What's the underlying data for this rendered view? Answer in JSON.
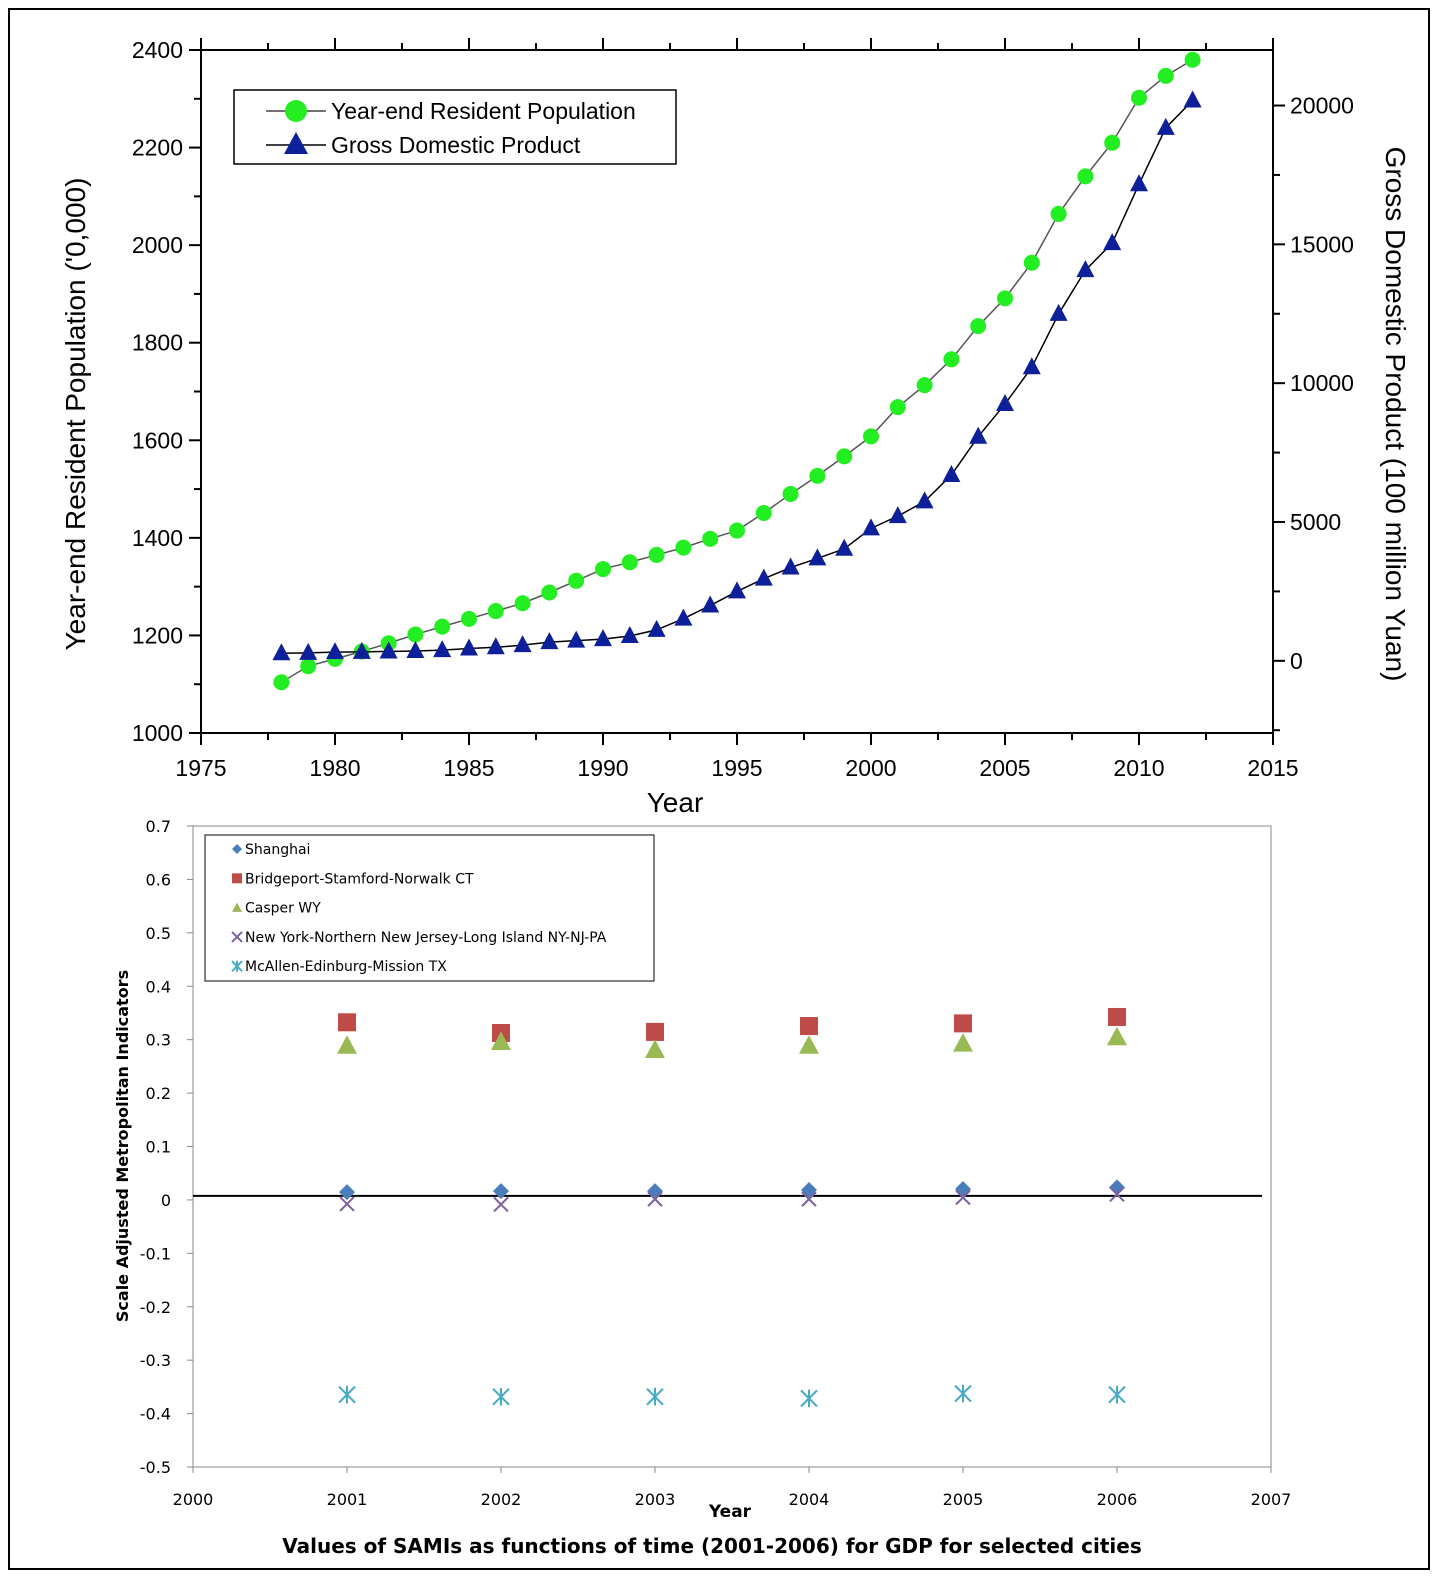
{
  "chart_data": [
    {
      "type": "line",
      "xlabel": "Year",
      "ylabel": "Year-end Resident Population ('0,000)",
      "y2label": "Gross Domestic Product (100 million Yuan)",
      "xlim": [
        1975,
        2015
      ],
      "ylim": [
        1000,
        2400
      ],
      "y2lim": [
        -2600,
        22000
      ],
      "x_ticks": [
        1975,
        1980,
        1985,
        1990,
        1995,
        2000,
        2005,
        2010,
        2015
      ],
      "y_ticks": [
        1000,
        1200,
        1400,
        1600,
        1800,
        2000,
        2200,
        2400
      ],
      "y2_ticks": [
        0,
        5000,
        10000,
        15000,
        20000
      ],
      "grid": false,
      "legend_position": "top-left",
      "x": [
        1978,
        1979,
        1980,
        1981,
        1982,
        1983,
        1984,
        1985,
        1986,
        1987,
        1988,
        1989,
        1990,
        1991,
        1992,
        1993,
        1994,
        1995,
        1996,
        1997,
        1998,
        1999,
        2000,
        2001,
        2002,
        2003,
        2004,
        2005,
        2006,
        2007,
        2008,
        2009,
        2010,
        2011,
        2012
      ],
      "series": [
        {
          "name": "Year-end Resident Population",
          "axis": "left",
          "color": "#22ee22",
          "marker": "circle",
          "values": [
            1104,
            1137,
            1152,
            1167,
            1184,
            1202,
            1218,
            1234,
            1250,
            1266,
            1288,
            1312,
            1336,
            1350,
            1365,
            1380,
            1398,
            1415,
            1451,
            1490,
            1527,
            1567,
            1608,
            1668,
            1713,
            1766,
            1834,
            1891,
            1964,
            2064,
            2141,
            2210,
            2302,
            2347,
            2380
          ]
        },
        {
          "name": "Gross Domestic Product",
          "axis": "right",
          "color": "#0d1f99",
          "marker": "triangle",
          "values": [
            273,
            286,
            312,
            324,
            337,
            352,
            386,
            443,
            488,
            563,
            675,
            727,
            782,
            893,
            1114,
            1519,
            1991,
            2499,
            2958,
            3360,
            3688,
            4034,
            4771,
            5210,
            5741,
            6694,
            8072,
            9248,
            10572,
            12494,
            14070,
            15046,
            17166,
            19196,
            20182
          ]
        }
      ]
    },
    {
      "type": "scatter",
      "title": "Values of SAMIs as functions of time (2001-2006) for GDP for selected cities",
      "xlabel": "Year",
      "ylabel": "Scale Adjusted Metropolitan Indicators",
      "xlim": [
        2000,
        2007
      ],
      "ylim": [
        -0.5,
        0.7
      ],
      "x_ticks": [
        2000,
        2001,
        2002,
        2003,
        2004,
        2005,
        2006,
        2007
      ],
      "y_ticks": [
        0.7,
        0.6,
        0.5,
        0.4,
        0.3,
        0.2,
        0.1,
        0,
        -0.1,
        -0.2,
        -0.3,
        -0.4,
        -0.5
      ],
      "grid": false,
      "legend_position": "top-left",
      "x": [
        2001,
        2002,
        2003,
        2004,
        2005,
        2006
      ],
      "series": [
        {
          "name": "Shanghai",
          "color": "#4a7ebb",
          "marker": "diamond",
          "values": [
            0.007,
            0.009,
            0.009,
            0.011,
            0.013,
            0.016
          ]
        },
        {
          "name": "Bridgeport-Stamford-Norwalk CT",
          "color": "#be4b48",
          "marker": "square",
          "values": [
            0.325,
            0.305,
            0.307,
            0.318,
            0.323,
            0.335
          ]
        },
        {
          "name": "Casper WY",
          "color": "#98b954",
          "marker": "triangle",
          "values": [
            0.282,
            0.289,
            0.274,
            0.282,
            0.286,
            0.298
          ]
        },
        {
          "name": "New York-Northern New Jersey-Long Island NY-NJ-PA",
          "color": "#7d60a0",
          "marker": "x",
          "values": [
            -0.015,
            -0.016,
            -0.006,
            -0.006,
            -0.003,
            0.003
          ]
        },
        {
          "name": "McAllen-Edinburg-Mission TX",
          "color": "#46aac5",
          "marker": "star",
          "values": [
            -0.372,
            -0.376,
            -0.376,
            -0.379,
            -0.37,
            -0.372
          ]
        }
      ]
    }
  ]
}
